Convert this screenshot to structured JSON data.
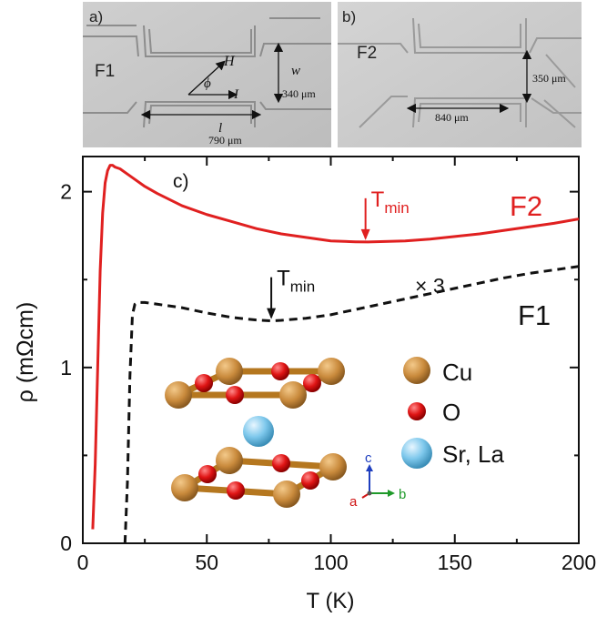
{
  "panel_a": {
    "label": "a)",
    "sample": "F1",
    "field": "H",
    "angle": "ϕ",
    "current": "I",
    "width_symbol": "w",
    "width_value": "340 μm",
    "length_symbol": "l",
    "length_value": "790 μm"
  },
  "panel_b": {
    "label": "b)",
    "sample": "F2",
    "width_value": "350 μm",
    "length_value": "840 μm"
  },
  "structure_legend": {
    "cu": "Cu",
    "o": "O",
    "srla": "Sr, La",
    "axis_a": "a",
    "axis_b": "b",
    "axis_c": "c",
    "colors": {
      "cu": "#c98a3c",
      "o": "#e01515",
      "srla": "#7ec8ec"
    }
  },
  "chart_data": {
    "type": "line",
    "panel_label": "c)",
    "xlabel": "T (K)",
    "ylabel": "ρ (mΩcm)",
    "xlim": [
      0,
      200
    ],
    "ylim": [
      0,
      2.2
    ],
    "xticks": [
      0,
      50,
      100,
      150,
      200
    ],
    "yticks": [
      0,
      1,
      2
    ],
    "tmin_label_base": "T",
    "tmin_label_sub": "min",
    "series": [
      {
        "name": "F2",
        "color": "#e02020",
        "style": "solid",
        "tmin": 114,
        "x": [
          4,
          5,
          6,
          7,
          8,
          9,
          10,
          11,
          12,
          13,
          15,
          18,
          20,
          25,
          30,
          40,
          50,
          60,
          70,
          80,
          90,
          100,
          110,
          115,
          120,
          130,
          140,
          150,
          160,
          170,
          180,
          190,
          200
        ],
        "y": [
          0.08,
          0.45,
          1.0,
          1.55,
          1.88,
          2.05,
          2.12,
          2.15,
          2.15,
          2.14,
          2.13,
          2.1,
          2.08,
          2.03,
          1.99,
          1.92,
          1.87,
          1.83,
          1.79,
          1.76,
          1.74,
          1.72,
          1.715,
          1.714,
          1.716,
          1.72,
          1.73,
          1.745,
          1.76,
          1.78,
          1.8,
          1.82,
          1.845
        ]
      },
      {
        "name": "F1",
        "annotation": "× 3",
        "color": "#111111",
        "style": "dashed",
        "tmin": 76,
        "x": [
          17,
          18,
          19,
          20,
          21,
          22,
          25,
          30,
          40,
          50,
          60,
          70,
          76,
          80,
          90,
          100,
          110,
          120,
          130,
          140,
          150,
          160,
          170,
          180,
          190,
          200
        ],
        "y": [
          0.0,
          0.35,
          0.95,
          1.3,
          1.36,
          1.37,
          1.37,
          1.36,
          1.34,
          1.31,
          1.285,
          1.27,
          1.265,
          1.268,
          1.28,
          1.3,
          1.33,
          1.36,
          1.39,
          1.42,
          1.45,
          1.48,
          1.51,
          1.535,
          1.555,
          1.575
        ]
      }
    ]
  }
}
